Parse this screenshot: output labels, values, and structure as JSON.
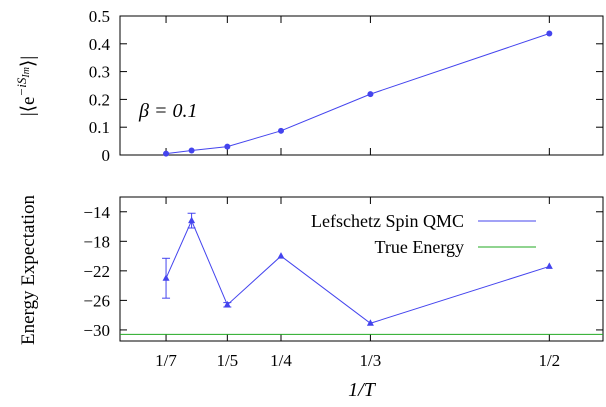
{
  "chart_data": [
    {
      "type": "line",
      "panel": "top",
      "ylabel": "|⟨e^{−iS_{Im}}⟩|",
      "ylim": [
        0,
        0.5
      ],
      "yticks": [
        0,
        0.1,
        0.2,
        0.3,
        0.4,
        0.5
      ],
      "ytick_labels": [
        "0",
        "0.1",
        "0.2",
        "0.3",
        "0.4",
        "0.5"
      ],
      "annotation": "β = 0.1",
      "series": [
        {
          "marker": "circle",
          "color": "#4444ee",
          "x": [
            0.1429,
            0.1667,
            0.2,
            0.25,
            0.3333,
            0.5
          ],
          "y": [
            0.005,
            0.016,
            0.03,
            0.087,
            0.219,
            0.437
          ]
        }
      ]
    },
    {
      "type": "line",
      "panel": "bottom",
      "ylabel": "Energy Expectation",
      "ylim": [
        -31.5,
        -12
      ],
      "yticks": [
        -30,
        -26,
        -22,
        -18,
        -14
      ],
      "ytick_labels": [
        "−30",
        "−26",
        "−22",
        "−18",
        "−14"
      ],
      "xlabel": "1/T",
      "xlim": [
        0.1,
        0.55
      ],
      "xticks": [
        0.1429,
        0.2,
        0.25,
        0.3333,
        0.5
      ],
      "xtick_labels": [
        "1/7",
        "1/5",
        "1/4",
        "1/3",
        "1/2"
      ],
      "legend_position": "top-right",
      "series": [
        {
          "name": "Lefschetz Spin QMC",
          "marker": "triangle",
          "color": "#4444ee",
          "x": [
            0.1429,
            0.1667,
            0.2,
            0.25,
            0.3333,
            0.5
          ],
          "y": [
            -23.0,
            -15.2,
            -26.6,
            -20.0,
            -29.1,
            -21.4
          ],
          "yerr": [
            2.7,
            1.0,
            0.3,
            0.15,
            0.15,
            0.15
          ]
        },
        {
          "name": "True Energy",
          "type": "hline",
          "color": "#22aa22",
          "y": -30.6
        }
      ]
    }
  ]
}
